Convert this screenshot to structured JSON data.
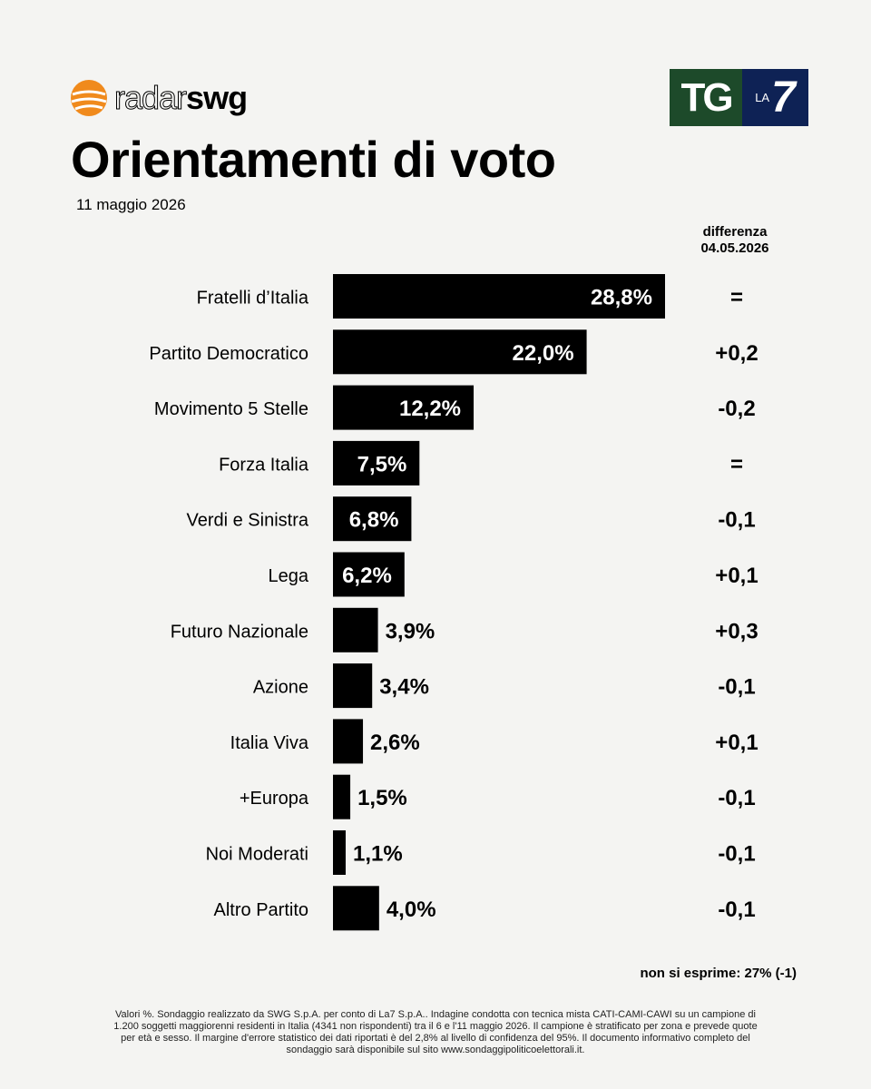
{
  "header": {
    "logo_text_light": "radar",
    "logo_text_bold": "swg",
    "brand_tg": "TG",
    "brand_la": "LA",
    "brand_seven": "7",
    "title": "Orientamenti di voto",
    "date": "11 maggio 2026",
    "diff_header_line1": "differenza",
    "diff_header_line2": "04.05.2026"
  },
  "chart_data": {
    "type": "bar",
    "orientation": "horizontal",
    "categories": [
      "Fratelli d’Italia",
      "Partito Democratico",
      "Movimento 5 Stelle",
      "Forza Italia",
      "Verdi e Sinistra",
      "Lega",
      "Futuro Nazionale",
      "Azione",
      "Italia Viva",
      "+Europa",
      "Noi Moderati",
      "Altro Partito"
    ],
    "values": [
      28.8,
      22.0,
      12.2,
      7.5,
      6.8,
      6.2,
      3.9,
      3.4,
      2.6,
      1.5,
      1.1,
      4.0
    ],
    "value_labels": [
      "28,8%",
      "22,0%",
      "12,2%",
      "7,5%",
      "6,8%",
      "6,2%",
      "3,9%",
      "3,4%",
      "2,6%",
      "1,5%",
      "1,1%",
      "4,0%"
    ],
    "differences": [
      "=",
      "+0,2",
      "-0,2",
      "=",
      "-0,1",
      "+0,1",
      "+0,3",
      "-0,1",
      "+0,1",
      "-0,1",
      "-0,1",
      "-0,1"
    ],
    "bar_color": "#000000"
  },
  "footer": {
    "non_si_esprime": "non si esprime: 27% (-1)",
    "note": "Valori %. Sondaggio realizzato da SWG S.p.A. per conto di La7 S.p.A.. Indagine condotta con tecnica mista CATI-CAMI-CAWI su un campione di 1.200 soggetti maggiorenni residenti in Italia (4341 non rispondenti) tra il 6 e l'11 maggio 2026. Il campione è stratificato per zona e prevede quote per età e sesso. Il margine d'errore statistico dei dati riportati è del 2,8% al livello di confidenza del 95%. Il documento informativo completo del sondaggio sarà disponibile sul sito www.sondaggipoliticoelettorali.it."
  },
  "colors": {
    "background": "#f4f4f2",
    "logo_orange": "#f08a1c",
    "tg_green": "#1d4a2a",
    "tg_navy": "#0e2255"
  }
}
